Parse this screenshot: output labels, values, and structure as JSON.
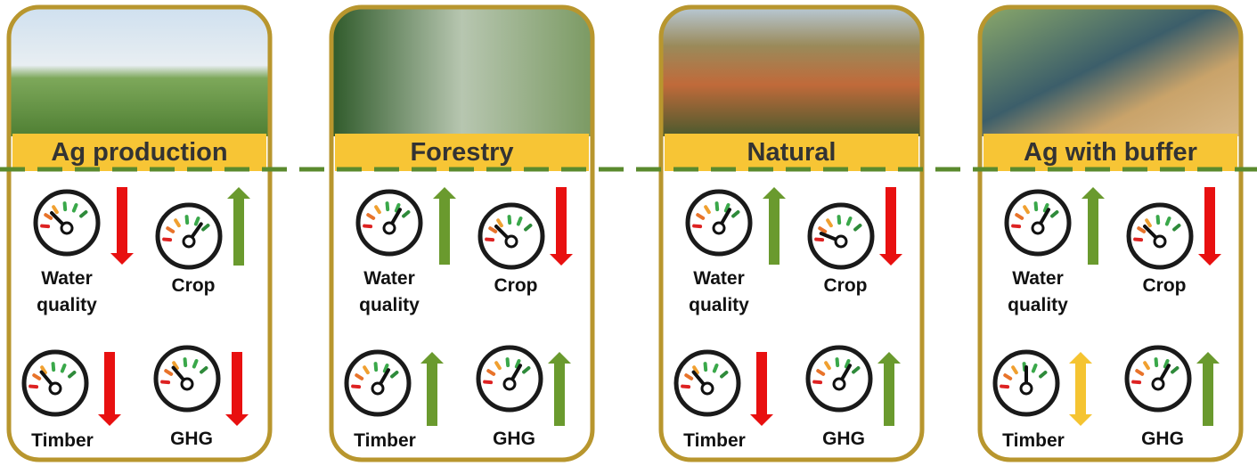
{
  "panels": [
    {
      "title": "Ag production",
      "indicators": [
        {
          "label": "Water quality"
        },
        {
          "label": "Crop"
        },
        {
          "label": "Timber"
        },
        {
          "label": "GHG"
        }
      ]
    },
    {
      "title": "Forestry",
      "indicators": [
        {
          "label": "Water quality"
        },
        {
          "label": "Crop"
        },
        {
          "label": "Timber"
        },
        {
          "label": "GHG"
        }
      ]
    },
    {
      "title": "Natural",
      "indicators": [
        {
          "label": "Water quality"
        },
        {
          "label": "Crop"
        },
        {
          "label": "Timber"
        },
        {
          "label": "GHG"
        }
      ]
    },
    {
      "title": "Ag with buffer",
      "indicators": [
        {
          "label": "Water quality"
        },
        {
          "label": "Crop"
        },
        {
          "label": "Timber"
        },
        {
          "label": "GHG"
        }
      ]
    }
  ]
}
